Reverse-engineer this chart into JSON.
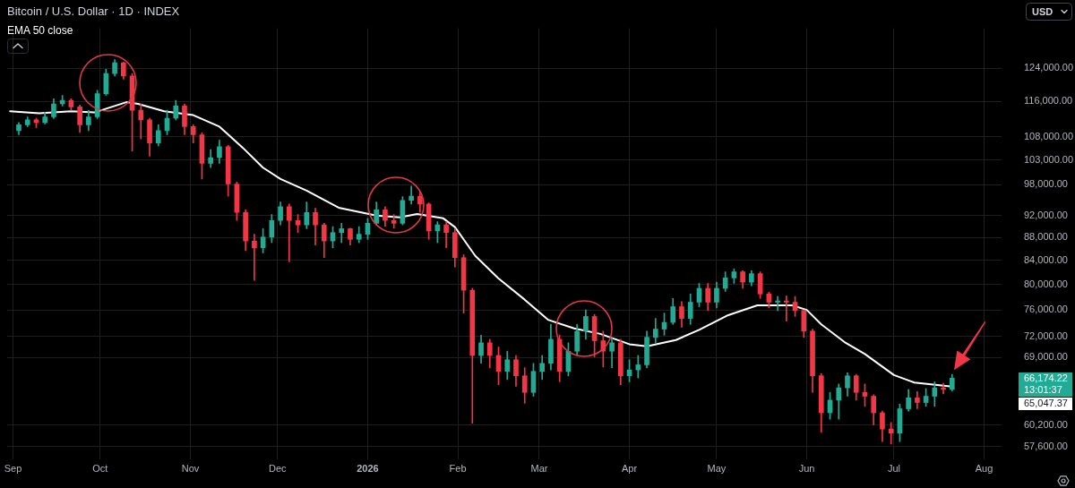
{
  "chart_data": {
    "type": "candlestick",
    "title": "Bitcoin / U.S. Dollar · 1D · INDEX",
    "ylabel": "USD",
    "series": [
      {
        "type": "candlestick",
        "x": [
          "2025-09-03",
          "2025-09-06",
          "2025-09-09",
          "2025-09-12",
          "2025-09-15",
          "2025-09-18",
          "2025-09-21",
          "2025-09-24",
          "2025-09-27",
          "2025-09-30",
          "2025-10-03",
          "2025-10-06",
          "2025-10-09",
          "2025-10-12",
          "2025-10-15",
          "2025-10-18",
          "2025-10-21",
          "2025-10-24",
          "2025-10-27",
          "2025-10-30",
          "2025-11-02",
          "2025-11-05",
          "2025-11-08",
          "2025-11-11",
          "2025-11-14",
          "2025-11-17",
          "2025-11-20",
          "2025-11-23",
          "2025-11-26",
          "2025-11-29",
          "2025-12-02",
          "2025-12-05",
          "2025-12-08",
          "2025-12-11",
          "2025-12-14",
          "2025-12-17",
          "2025-12-20",
          "2025-12-23",
          "2025-12-26",
          "2025-12-29",
          "2026-01-01",
          "2026-01-04",
          "2026-01-07",
          "2026-01-10",
          "2026-01-13",
          "2026-01-16",
          "2026-01-19",
          "2026-01-22",
          "2026-01-25",
          "2026-01-28",
          "2026-01-31",
          "2026-02-03",
          "2026-02-06",
          "2026-02-09",
          "2026-02-12",
          "2026-02-15",
          "2026-02-18",
          "2026-02-21",
          "2026-02-24",
          "2026-02-27",
          "2026-03-02",
          "2026-03-05",
          "2026-03-08",
          "2026-03-11",
          "2026-03-14",
          "2026-03-17",
          "2026-03-20",
          "2026-03-23",
          "2026-03-26",
          "2026-03-29",
          "2026-04-01",
          "2026-04-04",
          "2026-04-07",
          "2026-04-10",
          "2026-04-13",
          "2026-04-16",
          "2026-04-19",
          "2026-04-22",
          "2026-04-25",
          "2026-04-28",
          "2026-05-01",
          "2026-05-04",
          "2026-05-07",
          "2026-05-10",
          "2026-05-13",
          "2026-05-16",
          "2026-05-19",
          "2026-05-22",
          "2026-05-25",
          "2026-05-28",
          "2026-05-31",
          "2026-06-03",
          "2026-06-06",
          "2026-06-09",
          "2026-06-12",
          "2026-06-15",
          "2026-06-18",
          "2026-06-21",
          "2026-06-24",
          "2026-06-27",
          "2026-06-30",
          "2026-07-03",
          "2026-07-06",
          "2026-07-09",
          "2026-07-12",
          "2026-07-15",
          "2026-07-18",
          "2026-07-21"
        ],
        "ohlc": [
          [
            109300,
            111100,
            108400,
            110600
          ],
          [
            110600,
            112400,
            110200,
            111700
          ],
          [
            111700,
            112100,
            110000,
            111100
          ],
          [
            111100,
            113400,
            110800,
            112400
          ],
          [
            112400,
            116600,
            112000,
            115400
          ],
          [
            115400,
            117400,
            114900,
            116200
          ],
          [
            116200,
            116600,
            113900,
            114700
          ],
          [
            114700,
            115100,
            108900,
            110600
          ],
          [
            110600,
            113900,
            109300,
            112400
          ],
          [
            112400,
            118600,
            112000,
            117800
          ],
          [
            117800,
            123800,
            117400,
            122700
          ],
          [
            122700,
            126200,
            122100,
            125400
          ],
          [
            125400,
            125600,
            121300,
            122100
          ],
          [
            122100,
            122700,
            104900,
            113900
          ],
          [
            113900,
            115400,
            107500,
            111700
          ],
          [
            111700,
            112100,
            103800,
            106600
          ],
          [
            106600,
            110600,
            106000,
            109300
          ],
          [
            109300,
            113900,
            108400,
            112100
          ],
          [
            112100,
            116200,
            111700,
            114900
          ],
          [
            114900,
            115400,
            108400,
            110200
          ],
          [
            110200,
            110600,
            106600,
            108400
          ],
          [
            108400,
            108800,
            99100,
            102300
          ],
          [
            102300,
            105200,
            101400,
            103500
          ],
          [
            103500,
            107200,
            102300,
            105800
          ],
          [
            105800,
            106100,
            95700,
            98100
          ],
          [
            98100,
            98500,
            91100,
            92600
          ],
          [
            92600,
            93100,
            85700,
            87400
          ],
          [
            87400,
            88600,
            80700,
            86200
          ],
          [
            86200,
            89600,
            85300,
            88100
          ],
          [
            88100,
            92200,
            87100,
            91100
          ],
          [
            91100,
            94600,
            90300,
            93700
          ],
          [
            93700,
            94200,
            83800,
            91100
          ],
          [
            91100,
            92200,
            88900,
            90300
          ],
          [
            90300,
            94600,
            89600,
            92600
          ],
          [
            92600,
            93400,
            86700,
            90300
          ],
          [
            90300,
            90600,
            84500,
            87400
          ],
          [
            87400,
            90000,
            86200,
            88900
          ],
          [
            88900,
            90600,
            87100,
            89600
          ],
          [
            89600,
            89700,
            86700,
            87700
          ],
          [
            87700,
            90000,
            87100,
            88600
          ],
          [
            88600,
            91500,
            87700,
            90600
          ],
          [
            90600,
            94600,
            90300,
            93100
          ],
          [
            93100,
            93700,
            90000,
            91100
          ],
          [
            91100,
            92200,
            89700,
            90600
          ],
          [
            90600,
            95600,
            90300,
            94900
          ],
          [
            94900,
            97700,
            94200,
            95700
          ],
          [
            95700,
            96500,
            92600,
            94200
          ],
          [
            94200,
            94400,
            87700,
            89200
          ],
          [
            89200,
            90900,
            87100,
            90300
          ],
          [
            90300,
            90900,
            86200,
            88900
          ],
          [
            88900,
            89600,
            82900,
            84500
          ],
          [
            84500,
            85000,
            75500,
            79100
          ],
          [
            79100,
            79400,
            60400,
            69300
          ],
          [
            69300,
            72200,
            68200,
            71100
          ],
          [
            71100,
            71600,
            67600,
            69300
          ],
          [
            69300,
            70500,
            65300,
            67100
          ],
          [
            67100,
            69900,
            66000,
            68700
          ],
          [
            68700,
            69300,
            65100,
            66500
          ],
          [
            66500,
            67600,
            62900,
            64300
          ],
          [
            64300,
            68200,
            63800,
            67100
          ],
          [
            67100,
            69300,
            66000,
            68200
          ],
          [
            68200,
            73800,
            67300,
            71600
          ],
          [
            71600,
            72200,
            65700,
            67100
          ],
          [
            67100,
            71100,
            66500,
            69900
          ],
          [
            69900,
            73800,
            69300,
            72800
          ],
          [
            72800,
            76000,
            71600,
            75000
          ],
          [
            75000,
            75300,
            69100,
            71400
          ],
          [
            71400,
            72800,
            67700,
            69900
          ],
          [
            69900,
            71900,
            67600,
            71100
          ],
          [
            71100,
            71600,
            65300,
            66500
          ],
          [
            66500,
            68700,
            65700,
            67300
          ],
          [
            67300,
            69300,
            66200,
            68000
          ],
          [
            68000,
            72800,
            67600,
            71900
          ],
          [
            71900,
            74700,
            71100,
            73100
          ],
          [
            73100,
            75500,
            72200,
            74100
          ],
          [
            74100,
            77800,
            73800,
            76500
          ],
          [
            76500,
            77300,
            73400,
            74700
          ],
          [
            74700,
            78500,
            73800,
            77200
          ],
          [
            77200,
            80200,
            76500,
            79400
          ],
          [
            79400,
            80200,
            75900,
            77200
          ],
          [
            77200,
            80400,
            76300,
            79400
          ],
          [
            79400,
            82100,
            78900,
            81100
          ],
          [
            81100,
            82600,
            80200,
            82100
          ],
          [
            82100,
            82300,
            79400,
            80400
          ],
          [
            80400,
            82300,
            79800,
            81800
          ],
          [
            81800,
            82100,
            77800,
            78500
          ],
          [
            78500,
            78800,
            76300,
            77200
          ],
          [
            77200,
            78100,
            75900,
            77400
          ],
          [
            77400,
            78200,
            74300,
            77200
          ],
          [
            77200,
            78100,
            75000,
            75900
          ],
          [
            75900,
            76000,
            71900,
            72800
          ],
          [
            72800,
            73100,
            64300,
            66500
          ],
          [
            66500,
            66800,
            59300,
            61700
          ],
          [
            61700,
            64300,
            60900,
            63300
          ],
          [
            63300,
            65400,
            60900,
            64900
          ],
          [
            64900,
            66900,
            63800,
            66500
          ],
          [
            66500,
            66700,
            63300,
            64300
          ],
          [
            64300,
            65400,
            62500,
            63800
          ],
          [
            63800,
            64000,
            60200,
            61700
          ],
          [
            61700,
            61900,
            58200,
            59700
          ],
          [
            59700,
            60500,
            57900,
            59200
          ],
          [
            59200,
            62800,
            58200,
            62200
          ],
          [
            62200,
            64700,
            61900,
            63600
          ],
          [
            63600,
            64400,
            62200,
            63000
          ],
          [
            63000,
            64800,
            62500,
            63800
          ],
          [
            63800,
            65700,
            62500,
            64900
          ],
          [
            64900,
            65500,
            64100,
            64700
          ],
          [
            64700,
            66700,
            64500,
            66174.22
          ]
        ],
        "colors": [
          "#22ab94",
          "#22ab94",
          "#f23645",
          "#22ab94",
          "#22ab94",
          "#22ab94",
          "#f23645",
          "#f23645",
          "#22ab94",
          "#22ab94",
          "#22ab94",
          "#22ab94",
          "#f23645",
          "#f23645",
          "#f23645",
          "#f23645",
          "#22ab94",
          "#22ab94",
          "#22ab94",
          "#f23645",
          "#f23645",
          "#f23645",
          "#22ab94",
          "#22ab94",
          "#f23645",
          "#f23645",
          "#f23645",
          "#f23645",
          "#22ab94",
          "#22ab94",
          "#22ab94",
          "#f23645",
          "#f23645",
          "#22ab94",
          "#f23645",
          "#f23645",
          "#22ab94",
          "#22ab94",
          "#f23645",
          "#22ab94",
          "#22ab94",
          "#22ab94",
          "#f23645",
          "#f23645",
          "#22ab94",
          "#22ab94",
          "#f23645",
          "#f23645",
          "#22ab94",
          "#f23645",
          "#f23645",
          "#f23645",
          "#f23645",
          "#22ab94",
          "#f23645",
          "#f23645",
          "#22ab94",
          "#f23645",
          "#f23645",
          "#22ab94",
          "#22ab94",
          "#22ab94",
          "#f23645",
          "#22ab94",
          "#22ab94",
          "#22ab94",
          "#f23645",
          "#f23645",
          "#22ab94",
          "#f23645",
          "#22ab94",
          "#22ab94",
          "#22ab94",
          "#22ab94",
          "#22ab94",
          "#22ab94",
          "#f23645",
          "#22ab94",
          "#22ab94",
          "#f23645",
          "#22ab94",
          "#22ab94",
          "#22ab94",
          "#f23645",
          "#22ab94",
          "#f23645",
          "#f23645",
          "#22ab94",
          "#f23645",
          "#f23645",
          "#f23645",
          "#f23645",
          "#f23645",
          "#22ab94",
          "#22ab94",
          "#22ab94",
          "#f23645",
          "#f23645",
          "#f23645",
          "#f23645",
          "#f23645",
          "#22ab94",
          "#22ab94",
          "#f23645",
          "#22ab94",
          "#22ab94",
          "#f23645",
          "#22ab94"
        ]
      },
      {
        "type": "line",
        "name": "EMA 50 close",
        "color": "#ffffff",
        "x": [
          "2025-08-31",
          "2025-09-10",
          "2025-09-21",
          "2025-09-29",
          "2025-10-10",
          "2025-10-14",
          "2025-10-23",
          "2025-11-02",
          "2025-11-11",
          "2025-11-19",
          "2025-11-26",
          "2025-12-02",
          "2025-12-11",
          "2025-12-22",
          "2026-01-04",
          "2026-01-12",
          "2026-01-18",
          "2026-01-27",
          "2026-01-31",
          "2026-02-07",
          "2026-02-15",
          "2026-02-24",
          "2026-03-04",
          "2026-03-13",
          "2026-03-22",
          "2026-04-01",
          "2026-04-07",
          "2026-04-17",
          "2026-04-25",
          "2026-05-05",
          "2026-05-15",
          "2026-05-27",
          "2026-06-01",
          "2026-06-06",
          "2026-06-14",
          "2026-06-21",
          "2026-07-01",
          "2026-07-08",
          "2026-07-21"
        ],
        "values": [
          113700,
          113200,
          113700,
          113400,
          115800,
          115400,
          113700,
          112800,
          110200,
          105600,
          101400,
          99100,
          96800,
          93500,
          92000,
          91700,
          92300,
          91500,
          89900,
          84800,
          81000,
          77600,
          74500,
          73200,
          72400,
          70900,
          70600,
          71500,
          73000,
          75200,
          76700,
          76700,
          76000,
          73800,
          71200,
          69500,
          66600,
          65600,
          65047.37
        ]
      }
    ],
    "log": true,
    "grid": true,
    "legend": "top left",
    "xlim": [
      "2025-08-30",
      "2026-08-07"
    ],
    "xticks": [
      {
        "value": "2025-09-01",
        "label": "Sep"
      },
      {
        "value": "2025-10-01",
        "label": "Oct"
      },
      {
        "value": "2025-11-01",
        "label": "Nov"
      },
      {
        "value": "2025-12-01",
        "label": "Dec"
      },
      {
        "value": "2026-01-01",
        "label": "2026"
      },
      {
        "value": "2026-02-01",
        "label": "Feb"
      },
      {
        "value": "2026-03-01",
        "label": "Mar"
      },
      {
        "value": "2026-04-01",
        "label": "Apr"
      },
      {
        "value": "2026-05-01",
        "label": "May"
      },
      {
        "value": "2026-06-01",
        "label": "Jun"
      },
      {
        "value": "2026-07-01",
        "label": "Jul"
      },
      {
        "value": "2026-08-01",
        "label": "Aug"
      }
    ],
    "ylim": [
      56100,
      134500
    ],
    "yticks": [
      {
        "value": 124000,
        "label": "124,000.00"
      },
      {
        "value": 116000,
        "label": "116,000.00"
      },
      {
        "value": 108000,
        "label": "108,000.00"
      },
      {
        "value": 103000,
        "label": "103,000.00"
      },
      {
        "value": 98000,
        "label": "98,000.00"
      },
      {
        "value": 92000,
        "label": "92,000.00"
      },
      {
        "value": 88000,
        "label": "88,000.00"
      },
      {
        "value": 84000,
        "label": "84,000.00"
      },
      {
        "value": 80000,
        "label": "80,000.00"
      },
      {
        "value": 76000,
        "label": "76,000.00"
      },
      {
        "value": 72000,
        "label": "72,000.00"
      },
      {
        "value": 69000,
        "label": "69,000.00"
      },
      {
        "value": 60200,
        "label": "60,200.00"
      },
      {
        "value": 57600,
        "label": "57,600.00"
      }
    ],
    "annotations": [
      "66,174.22",
      "13:01:37",
      "65,047.37"
    ]
  }
}
